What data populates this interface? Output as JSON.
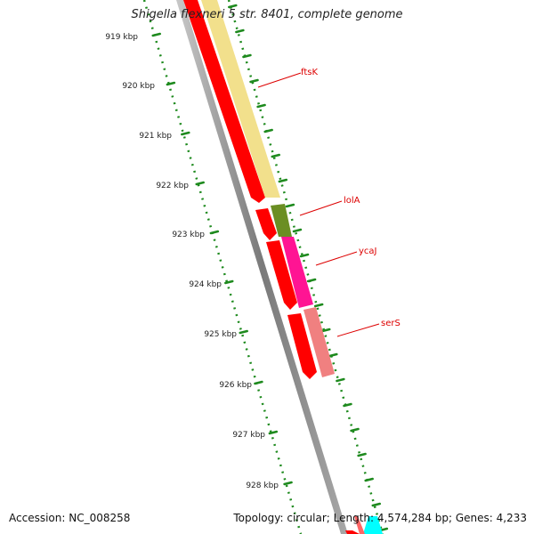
{
  "title": "Shigella flexneri 5 str. 8401, complete genome",
  "footer": {
    "accession": "Accession: NC_008258",
    "info": "Topology: circular; Length: 4,574,284 bp; Genes: 4,233"
  },
  "ruler": {
    "labels": [
      "919 kbp",
      "920 kbp",
      "921 kbp",
      "922 kbp",
      "923 kbp",
      "924 kbp",
      "925 kbp",
      "926 kbp",
      "927 kbp",
      "928 kbp"
    ],
    "color": "#1e8a1e"
  },
  "genes": [
    {
      "name": "ftsK",
      "color": "#f2e08c"
    },
    {
      "name": "lolA",
      "color": "#6b8e23"
    },
    {
      "name": "ycaJ",
      "color": "#ff1493"
    },
    {
      "name": "serS",
      "color": "#f08080"
    }
  ],
  "colors": {
    "cds": "#ff0000",
    "backbone": "#808080",
    "label_text": "#dd0000",
    "other_feature": "#00ffff"
  }
}
